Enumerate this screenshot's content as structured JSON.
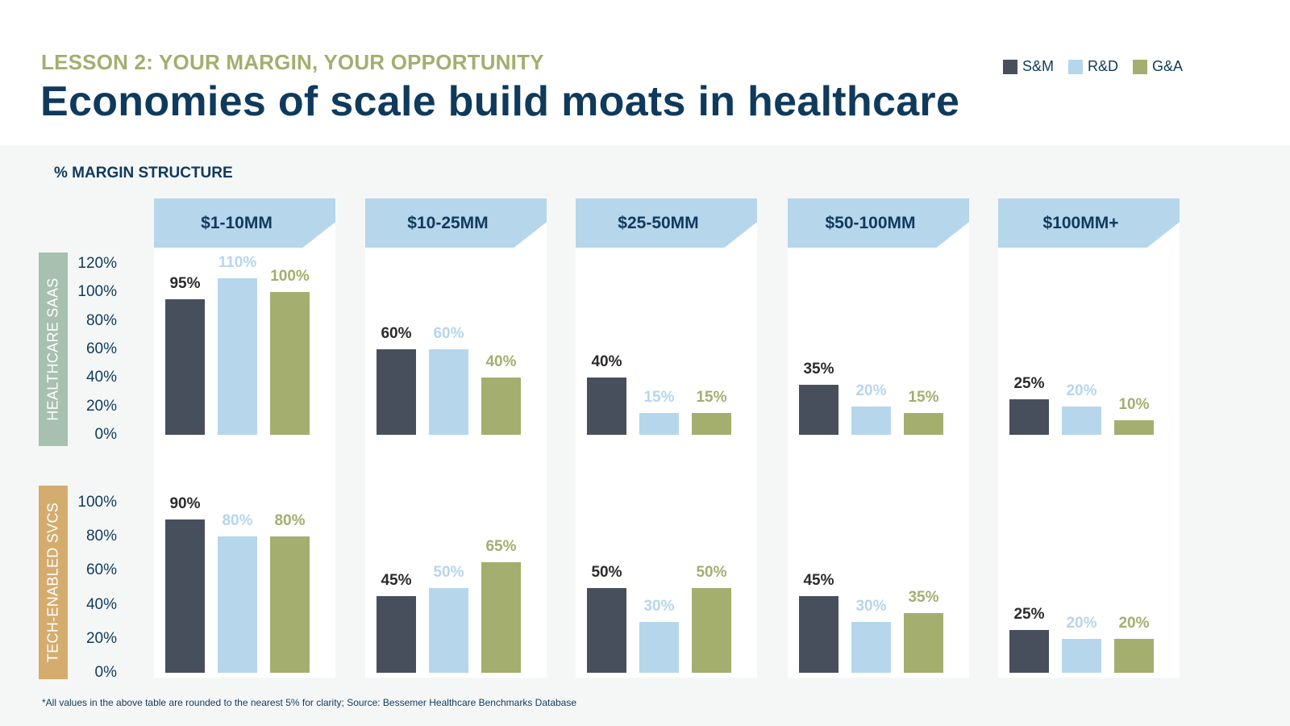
{
  "header": {
    "kicker": "LESSON 2: YOUR MARGIN, YOUR OPPORTUNITY",
    "title": "Economies of scale build moats in healthcare"
  },
  "legend": [
    {
      "label": "S&M",
      "color": "#484f5c"
    },
    {
      "label": "R&D",
      "color": "#b6d6ec"
    },
    {
      "label": "G&A",
      "color": "#a4ae6f"
    }
  ],
  "subtitle": "% MARGIN STRUCTURE",
  "footnote": "*All values in the above table are rounded to the nearest 5% for clarity; Source: Bessemer Healthcare Benchmarks Database",
  "colors": {
    "title": "#0f3a5c",
    "kicker": "#a4ae6f",
    "header_fill": "#b6d6ec",
    "row_saas": "#a7c0b0",
    "row_tech": "#d4ad6e",
    "sm_label": "#2b2b2b",
    "rd_label": "#b6d6ec",
    "ga_label": "#a4ae6f"
  },
  "chart_data": [
    {
      "type": "bar",
      "title": "Healthcare SaaS",
      "row_label": "HEALTHCARE SAAS",
      "ylabel": "% margin structure",
      "ylim": [
        0,
        120
      ],
      "yticks": [
        "0%",
        "20%",
        "40%",
        "60%",
        "80%",
        "100%",
        "120%"
      ],
      "ytick_values": [
        0,
        20,
        40,
        60,
        80,
        100,
        120
      ],
      "categories": [
        "$1-10MM",
        "$10-25MM",
        "$25-50MM",
        "$50-100MM",
        "$100MM+"
      ],
      "series": [
        {
          "name": "S&M",
          "values": [
            95,
            60,
            40,
            35,
            25
          ]
        },
        {
          "name": "R&D",
          "values": [
            110,
            60,
            15,
            20,
            20
          ]
        },
        {
          "name": "G&A",
          "values": [
            100,
            40,
            15,
            15,
            10
          ]
        }
      ],
      "grid": false,
      "legend": "top-right"
    },
    {
      "type": "bar",
      "title": "Tech-enabled Services",
      "row_label": "TECH-ENABLED SVCS",
      "ylabel": "% margin structure",
      "ylim": [
        0,
        100
      ],
      "yticks": [
        "0%",
        "20%",
        "40%",
        "60%",
        "80%",
        "100%"
      ],
      "ytick_values": [
        0,
        20,
        40,
        60,
        80,
        100
      ],
      "categories": [
        "$1-10MM",
        "$10-25MM",
        "$25-50MM",
        "$50-100MM",
        "$100MM+"
      ],
      "series": [
        {
          "name": "S&M",
          "values": [
            90,
            45,
            50,
            45,
            25
          ]
        },
        {
          "name": "R&D",
          "values": [
            80,
            50,
            30,
            30,
            20
          ]
        },
        {
          "name": "G&A",
          "values": [
            80,
            65,
            50,
            35,
            20
          ]
        }
      ],
      "grid": false,
      "legend": "top-right"
    }
  ]
}
